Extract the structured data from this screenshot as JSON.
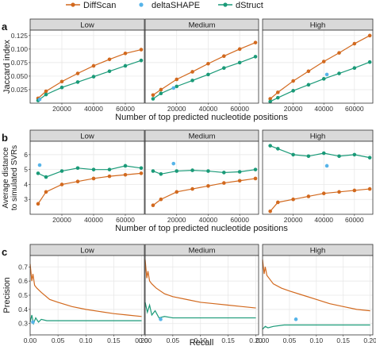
{
  "legend": {
    "position": "top-center",
    "items": [
      {
        "name": "DiffScan",
        "color": "#d2691e"
      },
      {
        "name": "deltaSHAPE",
        "color": "#56b4e9"
      },
      {
        "name": "dStruct",
        "color": "#1a9a78"
      }
    ]
  },
  "panel_tags": [
    "a",
    "b",
    "c"
  ],
  "facets": [
    "Low",
    "Medium",
    "High"
  ],
  "chart_data": [
    {
      "type": "line",
      "panel": "a",
      "ylabel": "Jaccard index",
      "xlabel": "Number of top predicted nucleotide positions",
      "xlim": [
        0,
        72000
      ],
      "ylim": [
        0.0,
        0.135
      ],
      "xticks": [
        20000,
        40000,
        60000
      ],
      "yticks": [
        0.025,
        0.05,
        0.075,
        0.1,
        0.125
      ],
      "ytick_labels": [
        "0.025",
        "0.050",
        "0.075",
        "0.100",
        "0.125"
      ],
      "grid": true,
      "facets": {
        "Low": {
          "DiffScan": {
            "x": [
              5000,
              10000,
              20000,
              30000,
              40000,
              50000,
              60000,
              70000
            ],
            "y": [
              0.009,
              0.022,
              0.04,
              0.055,
              0.069,
              0.081,
              0.092,
              0.099
            ]
          },
          "dStruct": {
            "x": [
              5000,
              10000,
              20000,
              30000,
              40000,
              50000,
              60000,
              70000
            ],
            "y": [
              0.005,
              0.016,
              0.029,
              0.039,
              0.049,
              0.059,
              0.069,
              0.079
            ]
          },
          "deltaSHAPE": {
            "x": [
              6000
            ],
            "y": [
              0.007
            ]
          }
        },
        "Medium": {
          "DiffScan": {
            "x": [
              5000,
              10000,
              20000,
              30000,
              40000,
              50000,
              60000,
              70000
            ],
            "y": [
              0.015,
              0.025,
              0.044,
              0.058,
              0.073,
              0.087,
              0.1,
              0.112
            ]
          },
          "dStruct": {
            "x": [
              5000,
              10000,
              20000,
              30000,
              40000,
              50000,
              60000,
              70000
            ],
            "y": [
              0.008,
              0.018,
              0.031,
              0.042,
              0.053,
              0.065,
              0.075,
              0.086
            ]
          },
          "deltaSHAPE": {
            "x": [
              18000
            ],
            "y": [
              0.028
            ]
          }
        },
        "High": {
          "DiffScan": {
            "x": [
              5000,
              10000,
              20000,
              30000,
              40000,
              50000,
              60000,
              70000
            ],
            "y": [
              0.008,
              0.02,
              0.041,
              0.059,
              0.077,
              0.093,
              0.11,
              0.125
            ]
          },
          "dStruct": {
            "x": [
              5000,
              10000,
              20000,
              30000,
              40000,
              50000,
              60000,
              70000
            ],
            "y": [
              0.003,
              0.01,
              0.023,
              0.034,
              0.045,
              0.055,
              0.065,
              0.076
            ]
          },
          "deltaSHAPE": {
            "x": [
              42000
            ],
            "y": [
              0.053
            ]
          }
        }
      }
    },
    {
      "type": "line",
      "panel": "b",
      "ylabel": "Average distance to simulated SVRs",
      "ylabel_lines": [
        "Average distance",
        "to simulated SVRs"
      ],
      "xlabel": "Number of top predicted nucleotide positions",
      "xlim": [
        0,
        72000
      ],
      "ylim": [
        2.0,
        6.9
      ],
      "xticks": [
        20000,
        40000,
        60000
      ],
      "yticks": [
        3,
        4,
        5,
        6
      ],
      "ytick_labels": [
        "3",
        "4",
        "5",
        "6"
      ],
      "grid": true,
      "facets": {
        "Low": {
          "DiffScan": {
            "x": [
              5000,
              10000,
              20000,
              30000,
              40000,
              50000,
              60000,
              70000
            ],
            "y": [
              2.7,
              3.5,
              4.0,
              4.2,
              4.4,
              4.55,
              4.65,
              4.75
            ]
          },
          "dStruct": {
            "x": [
              5000,
              10000,
              20000,
              30000,
              40000,
              50000,
              60000,
              70000
            ],
            "y": [
              4.75,
              4.5,
              4.9,
              5.1,
              5.0,
              5.0,
              5.25,
              5.1
            ]
          },
          "deltaSHAPE": {
            "x": [
              6000
            ],
            "y": [
              5.3
            ]
          }
        },
        "Medium": {
          "DiffScan": {
            "x": [
              5000,
              10000,
              20000,
              30000,
              40000,
              50000,
              60000,
              70000
            ],
            "y": [
              2.6,
              3.0,
              3.5,
              3.7,
              3.9,
              4.1,
              4.25,
              4.4
            ]
          },
          "dStruct": {
            "x": [
              5000,
              10000,
              20000,
              30000,
              40000,
              50000,
              60000,
              70000
            ],
            "y": [
              4.9,
              4.7,
              4.9,
              4.95,
              4.9,
              4.8,
              4.85,
              5.0
            ]
          },
          "deltaSHAPE": {
            "x": [
              18000
            ],
            "y": [
              5.4
            ]
          }
        },
        "High": {
          "DiffScan": {
            "x": [
              5000,
              10000,
              20000,
              30000,
              40000,
              50000,
              60000,
              70000
            ],
            "y": [
              2.2,
              2.8,
              3.0,
              3.2,
              3.4,
              3.5,
              3.6,
              3.7
            ]
          },
          "dStruct": {
            "x": [
              5000,
              10000,
              20000,
              30000,
              40000,
              50000,
              60000,
              70000
            ],
            "y": [
              6.6,
              6.4,
              6.0,
              5.9,
              6.1,
              5.9,
              6.0,
              5.8
            ]
          },
          "deltaSHAPE": {
            "x": [
              42000
            ],
            "y": [
              5.25
            ]
          }
        }
      }
    },
    {
      "type": "line",
      "panel": "c",
      "ylabel": "Precision",
      "xlabel": "Recall",
      "xlim": [
        0,
        0.205
      ],
      "ylim": [
        0.22,
        0.78
      ],
      "xticks": [
        0.0,
        0.05,
        0.1,
        0.15,
        0.2
      ],
      "xtick_labels": [
        "0.00",
        "0.05",
        "0.10",
        "0.15",
        "0.20"
      ],
      "yticks": [
        0.3,
        0.4,
        0.5,
        0.6,
        0.7
      ],
      "ytick_labels": [
        "0.3",
        "0.4",
        "0.5",
        "0.6",
        "0.7"
      ],
      "grid": true,
      "facets": {
        "Low": {
          "DiffScan": {
            "x": [
              0.0,
              0.003,
              0.005,
              0.008,
              0.012,
              0.02,
              0.035,
              0.05,
              0.075,
              0.1,
              0.125,
              0.15,
              0.175,
              0.2
            ],
            "y": [
              0.72,
              0.6,
              0.65,
              0.57,
              0.55,
              0.52,
              0.47,
              0.45,
              0.42,
              0.4,
              0.385,
              0.37,
              0.36,
              0.35
            ]
          },
          "dStruct": {
            "x": [
              0.0,
              0.003,
              0.006,
              0.01,
              0.015,
              0.02,
              0.03,
              0.05,
              0.1,
              0.15,
              0.2
            ],
            "y": [
              0.31,
              0.36,
              0.3,
              0.34,
              0.31,
              0.33,
              0.32,
              0.32,
              0.32,
              0.32,
              0.32
            ]
          },
          "deltaSHAPE": {
            "x": [
              0.005
            ],
            "y": [
              0.31
            ]
          }
        },
        "Medium": {
          "DiffScan": {
            "x": [
              0.0,
              0.003,
              0.005,
              0.008,
              0.012,
              0.02,
              0.035,
              0.05,
              0.075,
              0.1,
              0.125,
              0.15,
              0.175,
              0.2
            ],
            "y": [
              0.75,
              0.62,
              0.67,
              0.6,
              0.58,
              0.55,
              0.51,
              0.49,
              0.47,
              0.45,
              0.44,
              0.43,
              0.42,
              0.41
            ]
          },
          "dStruct": {
            "x": [
              0.0,
              0.004,
              0.008,
              0.012,
              0.018,
              0.025,
              0.035,
              0.05,
              0.1,
              0.15,
              0.2
            ],
            "y": [
              0.45,
              0.38,
              0.43,
              0.36,
              0.39,
              0.34,
              0.35,
              0.34,
              0.34,
              0.34,
              0.34
            ]
          },
          "deltaSHAPE": {
            "x": [
              0.028
            ],
            "y": [
              0.33
            ]
          }
        },
        "High": {
          "DiffScan": {
            "x": [
              0.0,
              0.003,
              0.005,
              0.008,
              0.012,
              0.02,
              0.035,
              0.05,
              0.075,
              0.1,
              0.125,
              0.15,
              0.175,
              0.2
            ],
            "y": [
              0.75,
              0.65,
              0.7,
              0.64,
              0.62,
              0.58,
              0.55,
              0.53,
              0.5,
              0.47,
              0.44,
              0.42,
              0.4,
              0.39
            ]
          },
          "dStruct": {
            "x": [
              0.0,
              0.005,
              0.01,
              0.02,
              0.04,
              0.06,
              0.08,
              0.1,
              0.15,
              0.2
            ],
            "y": [
              0.26,
              0.28,
              0.27,
              0.28,
              0.29,
              0.29,
              0.29,
              0.29,
              0.29,
              0.29
            ]
          },
          "deltaSHAPE": {
            "x": [
              0.062
            ],
            "y": [
              0.33
            ]
          }
        }
      }
    }
  ]
}
